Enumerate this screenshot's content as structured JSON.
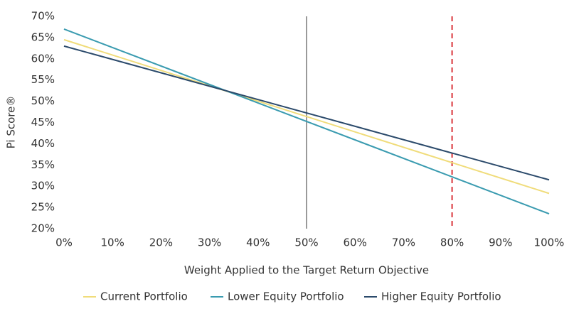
{
  "chart_data": {
    "type": "line",
    "x_label": "Weight Applied to the Target Return Objective",
    "y_label": "Pi Score®",
    "x": [
      0,
      100
    ],
    "series": [
      {
        "name": "Current Portfolio",
        "color": "#f0dc7a",
        "values": [
          64.5,
          28.3
        ]
      },
      {
        "name": "Lower Equity Portfolio",
        "color": "#3a9bb0",
        "values": [
          67,
          23.5
        ]
      },
      {
        "name": "Higher Equity Portfolio",
        "color": "#2b4a6b",
        "values": [
          63,
          31.5
        ]
      }
    ],
    "xlim": [
      0,
      100
    ],
    "xticks": [
      {
        "value": 0,
        "label": "0%"
      },
      {
        "value": 10,
        "label": "10%"
      },
      {
        "value": 20,
        "label": "20%"
      },
      {
        "value": 30,
        "label": "30%"
      },
      {
        "value": 40,
        "label": "40%"
      },
      {
        "value": 50,
        "label": "50%"
      },
      {
        "value": 60,
        "label": "60%"
      },
      {
        "value": 70,
        "label": "70%"
      },
      {
        "value": 80,
        "label": "80%"
      },
      {
        "value": 90,
        "label": "90%"
      },
      {
        "value": 100,
        "label": "100%"
      }
    ],
    "ylim": [
      20,
      70
    ],
    "yticks": [
      {
        "value": 20,
        "label": "20%"
      },
      {
        "value": 25,
        "label": "25%"
      },
      {
        "value": 30,
        "label": "30%"
      },
      {
        "value": 35,
        "label": "35%"
      },
      {
        "value": 40,
        "label": "40%"
      },
      {
        "value": 45,
        "label": "45%"
      },
      {
        "value": 50,
        "label": "50%"
      },
      {
        "value": 55,
        "label": "55%"
      },
      {
        "value": 60,
        "label": "60%"
      },
      {
        "value": 65,
        "label": "65%"
      },
      {
        "value": 70,
        "label": "70%"
      }
    ],
    "reference_lines": [
      {
        "x": 50,
        "color": "#9a9a9a",
        "dashed": false
      },
      {
        "x": 80,
        "color": "#d9343a",
        "dashed": true
      }
    ],
    "grid": false,
    "legend": "bottom"
  }
}
